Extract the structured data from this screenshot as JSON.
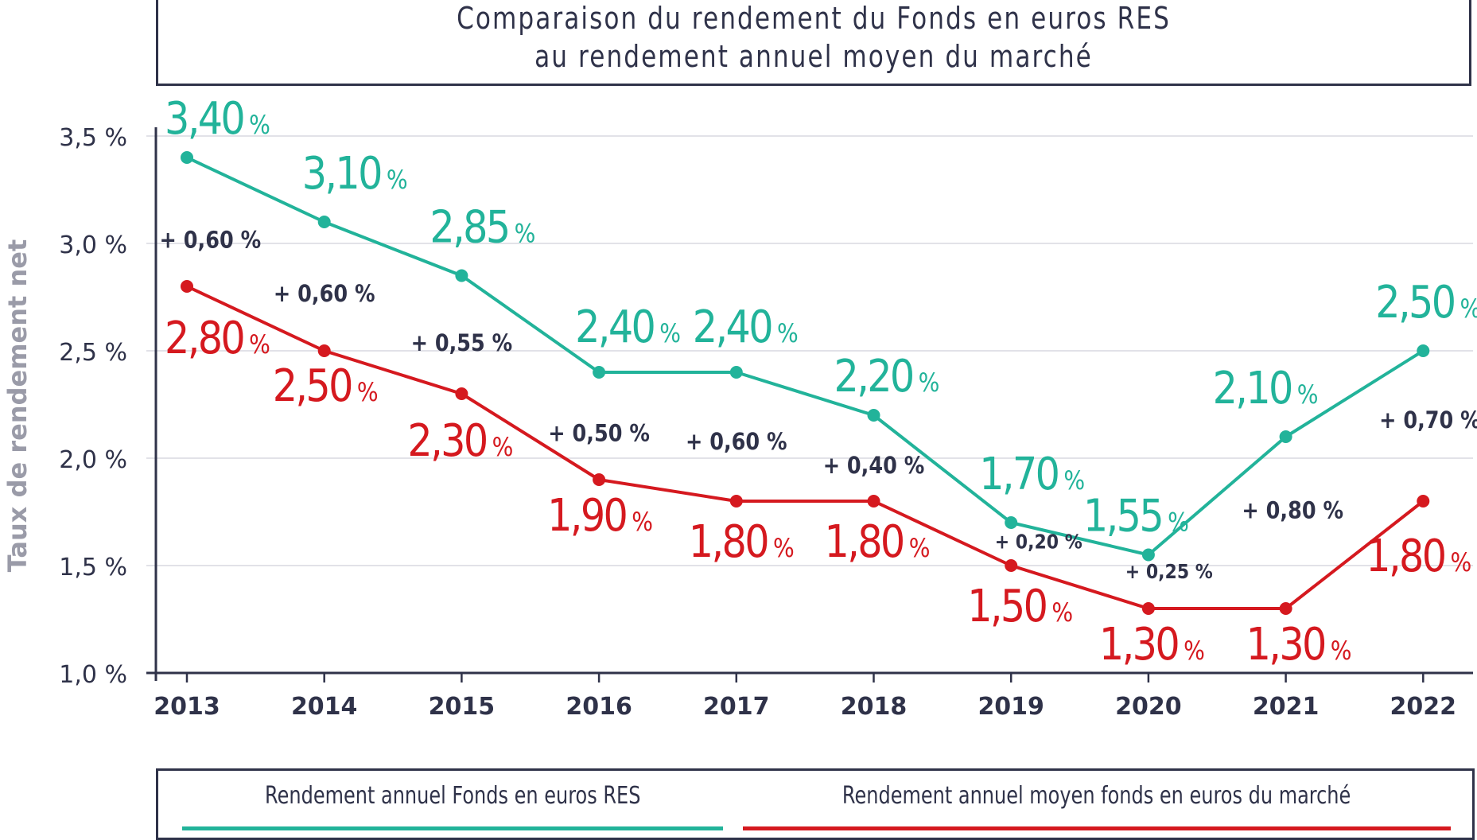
{
  "chart_data": {
    "type": "line",
    "title": "Comparaison du rendement du Fonds en euros RES",
    "subtitle": "au rendement annuel moyen du marché",
    "xlabel": "",
    "ylabel": "Taux de rendement net",
    "x": [
      "2013",
      "2014",
      "2015",
      "2016",
      "2017",
      "2018",
      "2019",
      "2020",
      "2021",
      "2022"
    ],
    "ylim": [
      1.0,
      3.5
    ],
    "yticks": [
      1.0,
      1.5,
      2.0,
      2.5,
      3.0,
      3.5
    ],
    "ytick_labels": [
      "1,0 %",
      "1,5 %",
      "2,0 %",
      "2,5 %",
      "3,0 %",
      "3,5 %"
    ],
    "grid": true,
    "legend_position": "bottom",
    "series": [
      {
        "name": "Rendement annuel Fonds en euros RES",
        "color": "#22b39a",
        "values": [
          3.4,
          3.1,
          2.85,
          2.4,
          2.4,
          2.2,
          1.7,
          1.55,
          2.1,
          2.5
        ],
        "labels": [
          "3,40",
          "3,10",
          "2,85",
          "2,40",
          "2,40",
          "2,20",
          "1,70",
          "1,55",
          "2,10",
          "2,50"
        ]
      },
      {
        "name": "Rendement annuel moyen fonds en euros du marché",
        "color": "#d5191f",
        "values": [
          2.8,
          2.5,
          2.3,
          1.9,
          1.8,
          1.8,
          1.5,
          1.3,
          1.3,
          1.8
        ],
        "labels": [
          "2,80",
          "2,50",
          "2,30",
          "1,90",
          "1,80",
          "1,80",
          "1,50",
          "1,30",
          "1,30",
          "1,80"
        ]
      }
    ],
    "annotations": {
      "percent_suffix": "%",
      "differences": [
        "+ 0,60 %",
        "+ 0,60 %",
        "+ 0,55 %",
        "+ 0,50 %",
        "+ 0,60 %",
        "+ 0,40 %",
        "+ 0,20 %",
        "+ 0,25 %",
        "+ 0,80 %",
        "+ 0,70 %"
      ]
    }
  },
  "colors": {
    "text": "#2f3249",
    "grid": "#e2e2e8",
    "axis_label": "#9a9ba8"
  }
}
